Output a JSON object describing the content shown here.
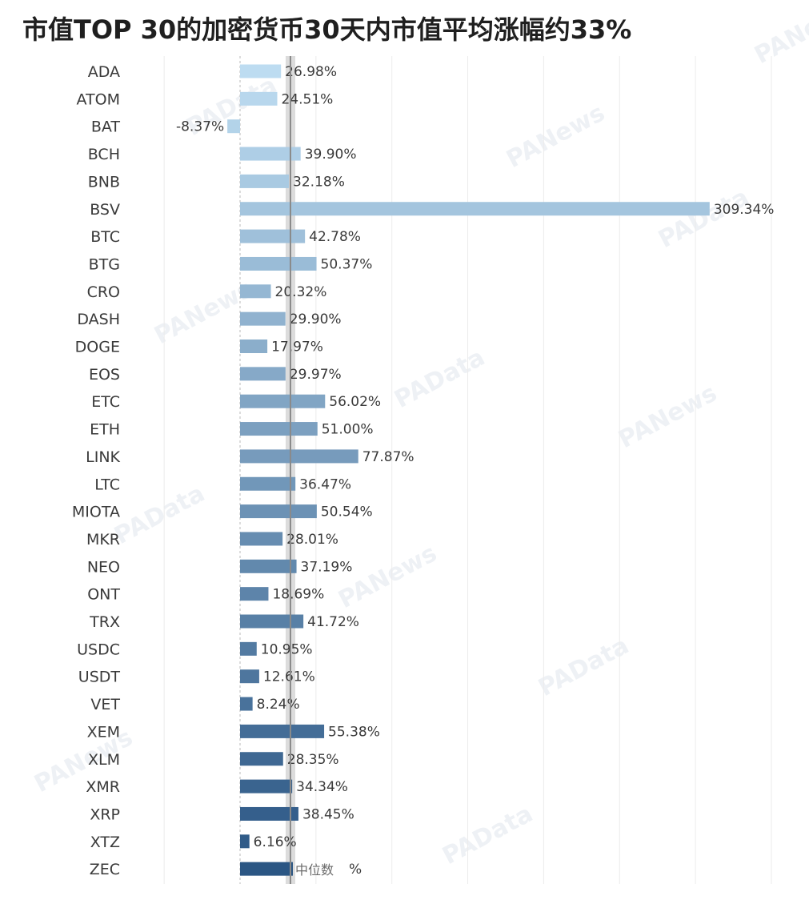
{
  "title": "市值TOP 30的加密货币30天内市值平均涨幅约33%",
  "watermarks": [
    "PAData",
    "PANews"
  ],
  "chart_data": {
    "type": "bar",
    "orientation": "horizontal",
    "title": "市值TOP 30的加密货币30天内市值平均涨幅约33%",
    "categories": [
      "ADA",
      "ATOM",
      "BAT",
      "BCH",
      "BNB",
      "BSV",
      "BTC",
      "BTG",
      "CRO",
      "DASH",
      "DOGE",
      "EOS",
      "ETC",
      "ETH",
      "LINK",
      "LTC",
      "MIOTA",
      "MKR",
      "NEO",
      "ONT",
      "TRX",
      "USDC",
      "USDT",
      "VET",
      "XEM",
      "XLM",
      "XMR",
      "XRP",
      "XTZ",
      "ZEC"
    ],
    "values": [
      26.98,
      24.51,
      -8.37,
      39.9,
      32.18,
      309.34,
      42.78,
      50.37,
      20.32,
      29.9,
      17.97,
      29.97,
      56.02,
      51.0,
      77.87,
      36.47,
      50.54,
      28.01,
      37.19,
      18.69,
      41.72,
      10.95,
      12.61,
      8.24,
      55.38,
      28.35,
      34.34,
      38.45,
      6.16,
      null
    ],
    "value_labels": [
      "26.98%",
      "24.51%",
      "-8.37%",
      "39.90%",
      "32.18%",
      "309.34%",
      "42.78%",
      "50.37%",
      "20.32%",
      "29.90%",
      "17.97%",
      "29.97%",
      "56.02%",
      "51.00%",
      "77.87%",
      "36.47%",
      "50.54%",
      "28.01%",
      "37.19%",
      "18.69%",
      "41.72%",
      "10.95%",
      "12.61%",
      "8.24%",
      "55.38%",
      "28.35%",
      "34.34%",
      "38.45%",
      "6.16%",
      "%"
    ],
    "median": 33.2,
    "median_label": "中位数",
    "xlim": [
      -50,
      350
    ],
    "grid": true,
    "colors": {
      "light": "#bddcf1",
      "dark": "#2b5684",
      "median_band": "#d6d6d6",
      "median_line": "#8a8a8a",
      "grid": "#ececec",
      "zero_line": "#b8b8b8"
    }
  }
}
